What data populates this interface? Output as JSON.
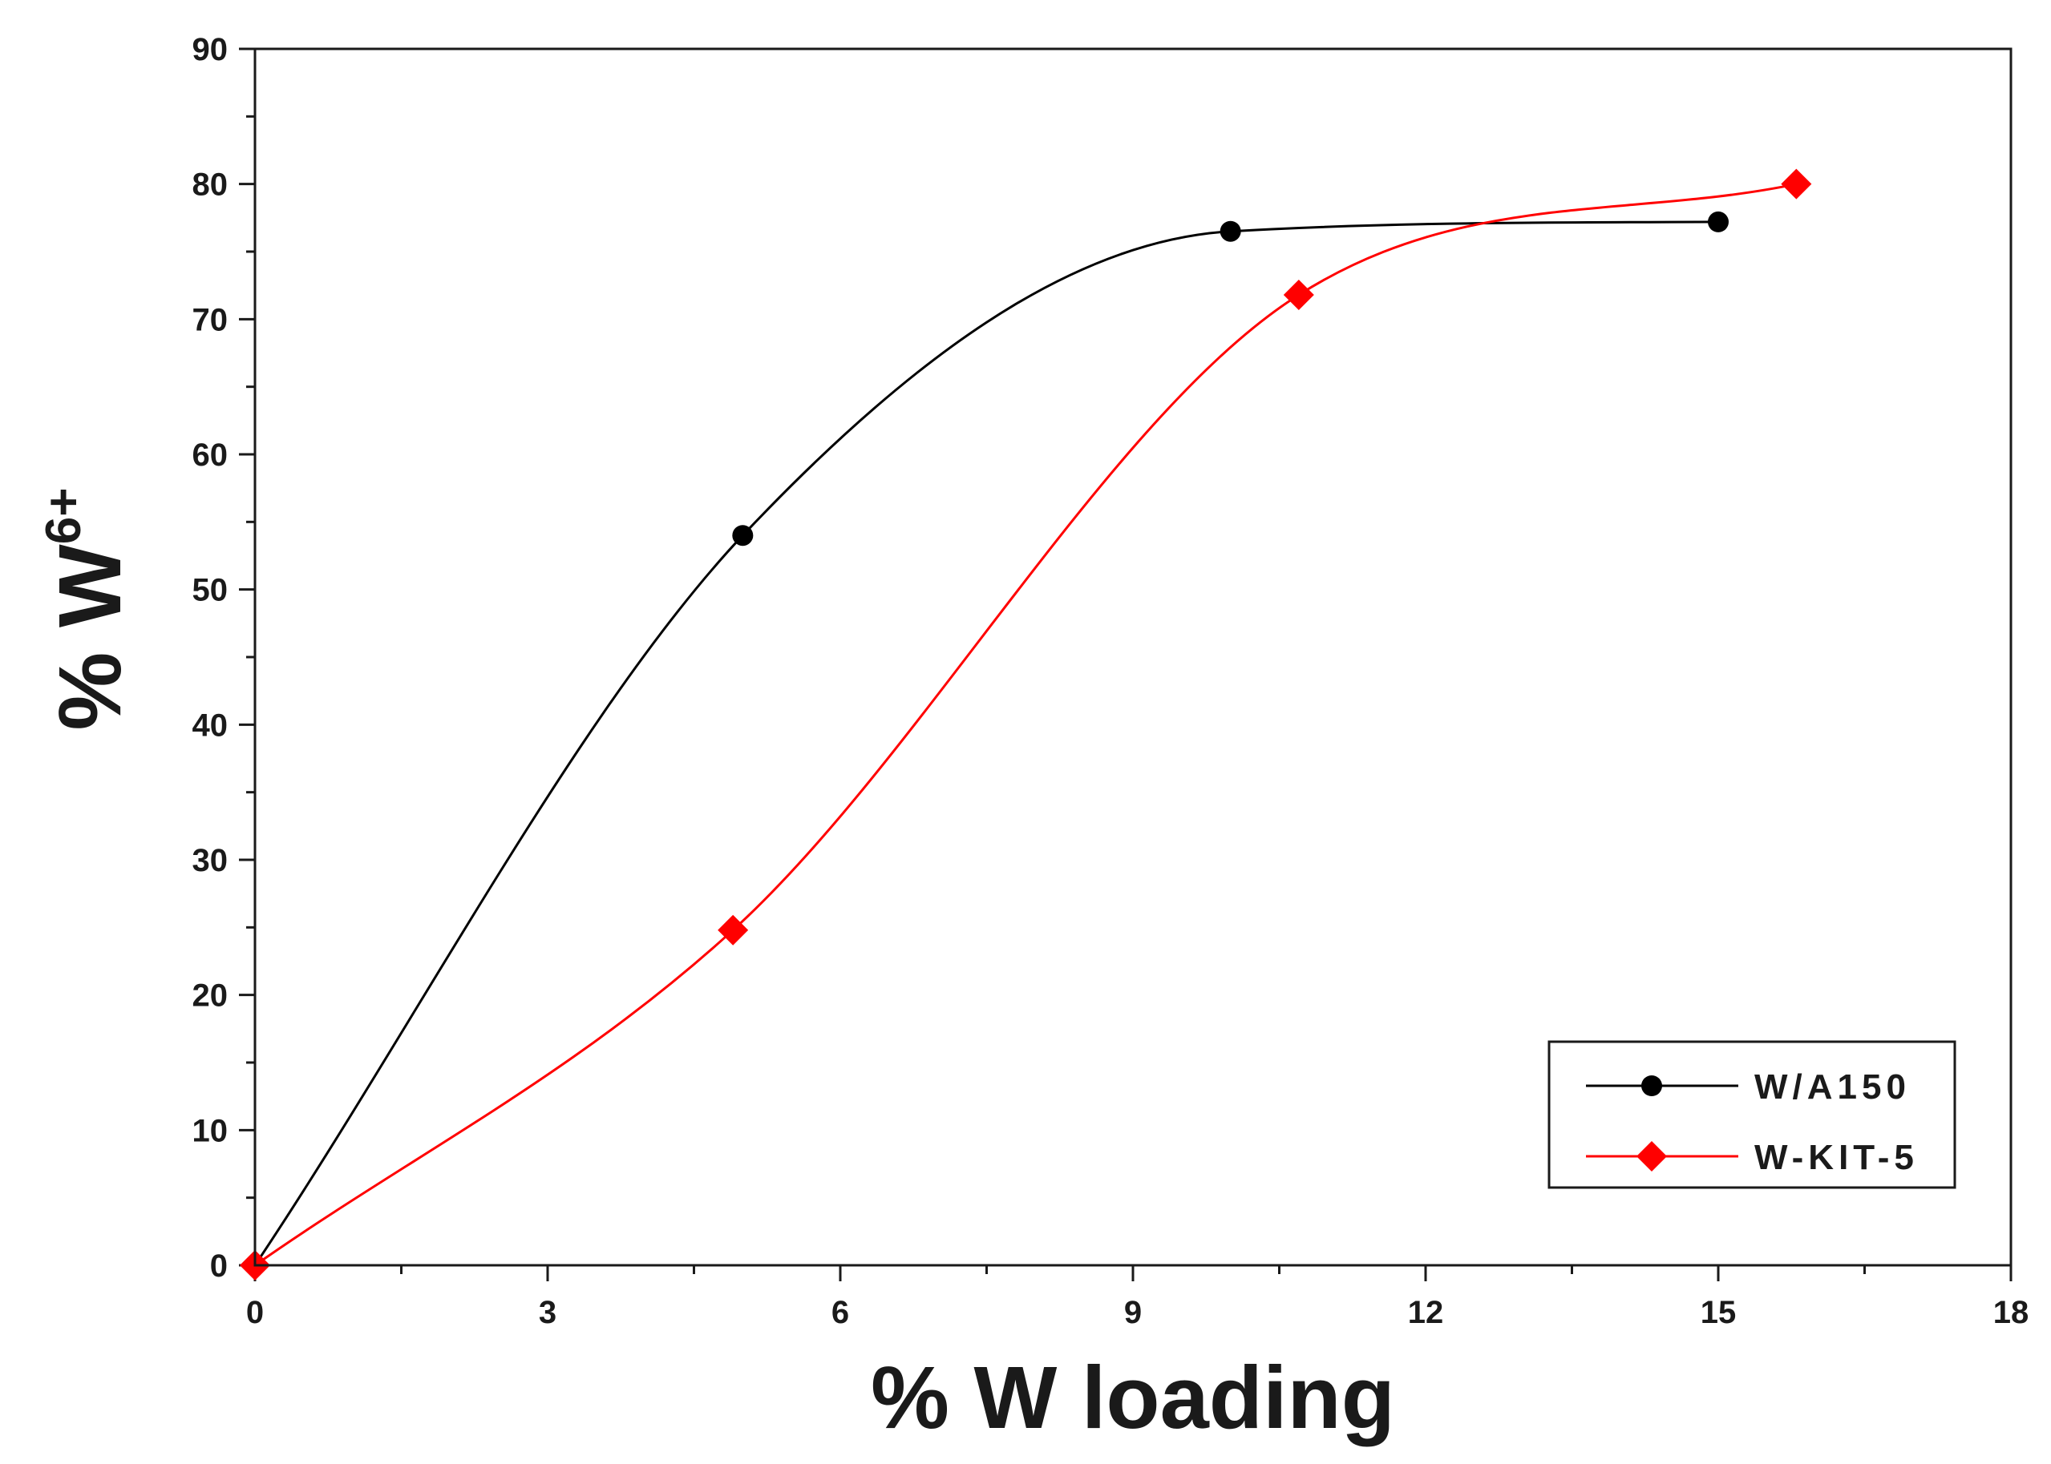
{
  "chart_data": {
    "type": "line",
    "xlabel": "% W loading",
    "ylabel": "% W",
    "ylabel_superscript": "6+",
    "xlim": [
      0,
      18
    ],
    "ylim": [
      0,
      90
    ],
    "x_ticks": [
      "0",
      "3",
      "6",
      "9",
      "12",
      "15",
      "18"
    ],
    "y_ticks": [
      "0",
      "10",
      "20",
      "30",
      "40",
      "50",
      "60",
      "70",
      "80",
      "90"
    ],
    "grid": false,
    "legend_position": "bottom-right",
    "series": [
      {
        "name": "W/A150",
        "color": "#000000",
        "marker": "circle",
        "x": [
          0,
          5,
          10,
          15
        ],
        "y": [
          0,
          54,
          76.5,
          77.2
        ]
      },
      {
        "name": "W-KIT-5",
        "color": "#ff0000",
        "marker": "diamond",
        "x": [
          0,
          4.9,
          10.7,
          15.8
        ],
        "y": [
          0,
          24.8,
          71.8,
          80
        ]
      }
    ]
  }
}
